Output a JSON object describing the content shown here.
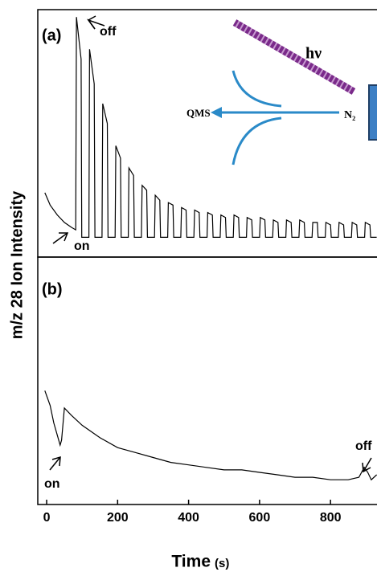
{
  "chart_data": [
    {
      "type": "line",
      "panel": "(a)",
      "ylabel": "m/z 28 Ion Intensity",
      "color": "#000000",
      "annotations": [
        "off",
        "on"
      ],
      "inset": [
        "hν",
        "QMS",
        "N₂"
      ],
      "xlim": [
        -25,
        931
      ],
      "ylim": [
        0,
        100
      ],
      "x": [
        -5,
        10,
        30,
        50,
        70,
        82,
        84,
        97,
        99,
        119,
        121,
        134,
        136,
        156,
        158,
        171,
        173,
        193,
        195,
        208,
        210,
        230,
        232,
        245,
        247,
        267,
        269,
        282,
        284,
        304,
        306,
        319,
        321,
        341,
        343,
        356,
        358,
        378,
        380,
        393,
        395,
        415,
        417,
        430,
        432,
        452,
        454,
        467,
        469,
        489,
        491,
        504,
        506,
        526,
        528,
        541,
        543,
        563,
        565,
        578,
        580,
        600,
        602,
        615,
        617,
        637,
        639,
        652,
        654,
        674,
        676,
        689,
        691,
        711,
        713,
        726,
        728,
        748,
        750,
        763,
        765,
        785,
        787,
        800,
        802,
        822,
        824,
        837,
        839,
        859,
        861,
        874,
        876,
        896,
        898,
        911,
        913,
        930
      ],
      "values": [
        26,
        21,
        17,
        14,
        12,
        11,
        97,
        80,
        8,
        8,
        84,
        70,
        8,
        8,
        62,
        54,
        8,
        8,
        45,
        40,
        8,
        8,
        36,
        33,
        8,
        8,
        29,
        27,
        8,
        8,
        25,
        23,
        8,
        8,
        22,
        21,
        8,
        8,
        20,
        19,
        8,
        8,
        19,
        18,
        8,
        8,
        18,
        17,
        8,
        8,
        17,
        16,
        8,
        8,
        17,
        16,
        8,
        8,
        16,
        15,
        8,
        8,
        16,
        15,
        8,
        8,
        15,
        14,
        8,
        8,
        15,
        14,
        8,
        8,
        15,
        14,
        8,
        8,
        14,
        14,
        8,
        8,
        14,
        13,
        8,
        8,
        14,
        13,
        8,
        8,
        14,
        13,
        8,
        8,
        14,
        13,
        8,
        8
      ]
    },
    {
      "type": "line",
      "panel": "(b)",
      "color": "#000000",
      "annotations": [
        "on",
        "off"
      ],
      "xlabel": "Time",
      "xlabel_unit": "(s)",
      "xlim": [
        -25,
        931
      ],
      "ylim": [
        0,
        100
      ],
      "xticks": [
        0,
        200,
        400,
        600,
        800
      ],
      "x": [
        -5,
        10,
        20,
        30,
        38,
        42,
        50,
        70,
        100,
        150,
        200,
        250,
        300,
        350,
        400,
        450,
        500,
        550,
        600,
        650,
        700,
        750,
        800,
        850,
        880,
        895,
        905,
        915,
        930
      ],
      "values": [
        46,
        40,
        33,
        28,
        24,
        26,
        39,
        36,
        32,
        27,
        23,
        21,
        19,
        17,
        16,
        15,
        14,
        14,
        13,
        12,
        11,
        11,
        10,
        10,
        11,
        15,
        13,
        10,
        12
      ]
    }
  ]
}
